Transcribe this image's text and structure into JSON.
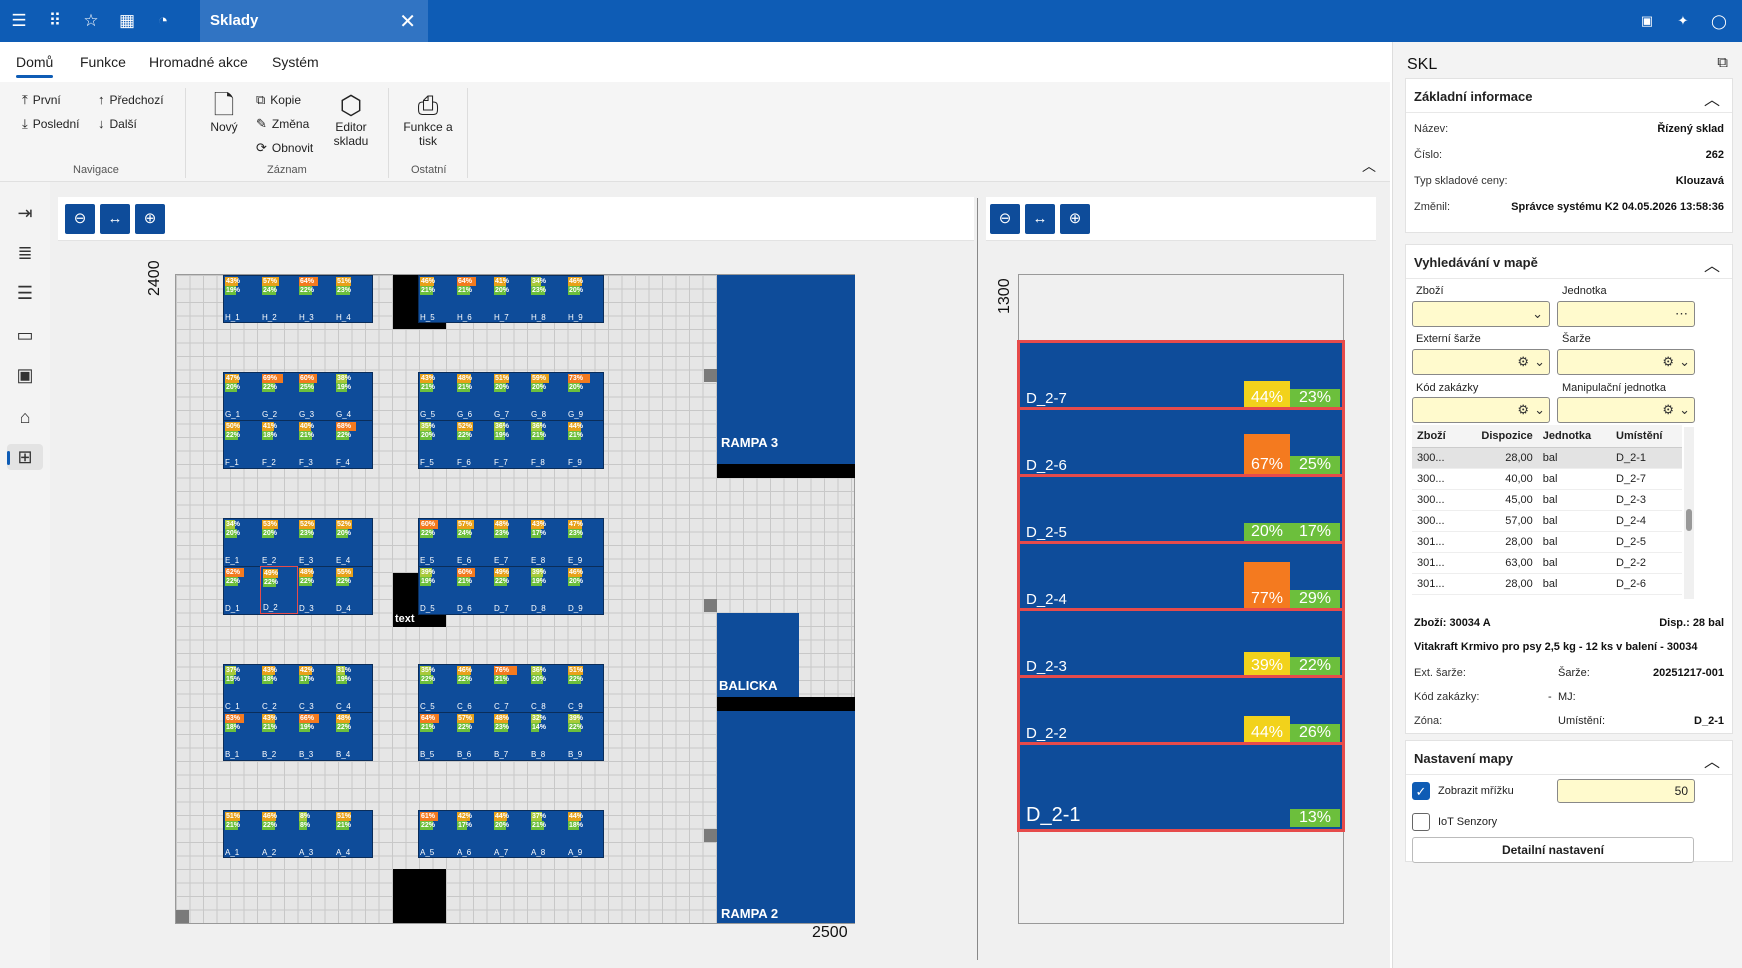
{
  "tab": {
    "label": "Sklady"
  },
  "menu": [
    "Domů",
    "Funkce",
    "Hromadné akce",
    "Systém"
  ],
  "ribbon": {
    "nav": {
      "first": "První",
      "prev": "Předchozí",
      "last": "Poslední",
      "next": "Další",
      "group": "Navigace"
    },
    "record": {
      "new": "Nový",
      "copy": "Kopie",
      "change": "Změna",
      "refresh": "Obnovit",
      "editor_l1": "Editor",
      "editor_l2": "skladu",
      "group": "Záznam"
    },
    "other": {
      "print_l1": "Funkce a",
      "print_l2": "tisk",
      "group": "Ostatní"
    }
  },
  "map1": {
    "axis_y": "2400",
    "axis_x": "2500",
    "zones": {
      "rampa3": "RAMPA 3",
      "balicka": "BALICKA",
      "rampa2": "RAMPA 2",
      "text": "text"
    },
    "rows": [
      {
        "labels": [
          "H_1",
          "H_2",
          "H_3",
          "H_4",
          "H_5",
          "H_6",
          "H_7",
          "H_8",
          "H_9"
        ],
        "t1": [
          "43%",
          "57%",
          "64%",
          "51%",
          "46%",
          "64%",
          "41%",
          "34%",
          "46%"
        ],
        "t2": [
          "19%",
          "24%",
          "22%",
          "23%",
          "21%",
          "21%",
          "20%",
          "23%",
          "20%"
        ]
      },
      {
        "labels": [
          "G_1",
          "G_2",
          "G_3",
          "G_4",
          "G_5",
          "G_6",
          "G_7",
          "G_8",
          "G_9"
        ],
        "t1": [
          "47%",
          "69%",
          "60%",
          "38%",
          "43%",
          "48%",
          "51%",
          "59%",
          "73%"
        ],
        "t2": [
          "20%",
          "22%",
          "25%",
          "19%",
          "21%",
          "21%",
          "20%",
          "20%",
          "20%"
        ]
      },
      {
        "labels": [
          "F_1",
          "F_2",
          "F_3",
          "F_4",
          "F_5",
          "F_6",
          "F_7",
          "F_8",
          "F_9"
        ],
        "t1": [
          "50%",
          "41%",
          "40%",
          "68%",
          "35%",
          "52%",
          "36%",
          "36%",
          "44%"
        ],
        "t2": [
          "22%",
          "18%",
          "21%",
          "22%",
          "20%",
          "22%",
          "19%",
          "21%",
          "21%"
        ]
      },
      {
        "labels": [
          "E_1",
          "E_2",
          "E_3",
          "E_4",
          "E_5",
          "E_6",
          "E_7",
          "E_8",
          "E_9"
        ],
        "t1": [
          "34%",
          "53%",
          "52%",
          "52%",
          "60%",
          "57%",
          "48%",
          "43%",
          "47%"
        ],
        "t2": [
          "20%",
          "20%",
          "23%",
          "20%",
          "22%",
          "24%",
          "23%",
          "17%",
          "23%"
        ]
      },
      {
        "labels": [
          "D_1",
          "D_2",
          "D_3",
          "D_4",
          "D_5",
          "D_6",
          "D_7",
          "D_8",
          "D_9"
        ],
        "t1": [
          "62%",
          "49%",
          "48%",
          "55%",
          "39%",
          "60%",
          "49%",
          "39%",
          "46%"
        ],
        "t2": [
          "22%",
          "22%",
          "22%",
          "22%",
          "19%",
          "21%",
          "22%",
          "19%",
          "20%"
        ]
      },
      {
        "labels": [
          "C_1",
          "C_2",
          "C_3",
          "C_4",
          "C_5",
          "C_6",
          "C_7",
          "C_8",
          "C_9"
        ],
        "t1": [
          "37%",
          "43%",
          "42%",
          "31%",
          "35%",
          "46%",
          "76%",
          "36%",
          "51%"
        ],
        "t2": [
          "15%",
          "18%",
          "17%",
          "19%",
          "22%",
          "22%",
          "21%",
          "20%",
          "22%"
        ]
      },
      {
        "labels": [
          "B_1",
          "B_2",
          "B_3",
          "B_4",
          "B_5",
          "B_6",
          "B_7",
          "B_8",
          "B_9"
        ],
        "t1": [
          "63%",
          "43%",
          "66%",
          "48%",
          "64%",
          "57%",
          "48%",
          "32%",
          "39%"
        ],
        "t2": [
          "18%",
          "21%",
          "19%",
          "22%",
          "21%",
          "22%",
          "23%",
          "14%",
          "22%"
        ]
      },
      {
        "labels": [
          "A_1",
          "A_2",
          "A_3",
          "A_4",
          "A_5",
          "A_6",
          "A_7",
          "A_8",
          "A_9"
        ],
        "t1": [
          "51%",
          "46%",
          "8%",
          "51%",
          "61%",
          "42%",
          "44%",
          "37%",
          "44%"
        ],
        "t2": [
          "21%",
          "22%",
          "8%",
          "21%",
          "22%",
          "17%",
          "20%",
          "21%",
          "18%"
        ]
      }
    ]
  },
  "map2": {
    "axis_y": "1300",
    "slots": [
      {
        "name": "D_2-7",
        "p1": "44%",
        "p2": "23%",
        "color": "#f2d21b"
      },
      {
        "name": "D_2-6",
        "p1": "67%",
        "p2": "25%",
        "color": "#f47a1f"
      },
      {
        "name": "D_2-5",
        "p1": "20%",
        "p2": "17%",
        "color": "#6cbf3c"
      },
      {
        "name": "D_2-4",
        "p1": "77%",
        "p2": "29%",
        "color": "#f47a1f"
      },
      {
        "name": "D_2-3",
        "p1": "39%",
        "p2": "22%",
        "color": "#f2d21b"
      },
      {
        "name": "D_2-2",
        "p1": "44%",
        "p2": "26%",
        "color": "#f2d21b"
      },
      {
        "name": "D_2-1",
        "p1": "",
        "p2": "13%",
        "color": ""
      }
    ]
  },
  "panel": {
    "title": "SKL",
    "info": {
      "header": "Základní informace",
      "name_k": "Název:",
      "name_v": "Řízený sklad",
      "num_k": "Číslo:",
      "num_v": "262",
      "price_k": "Typ skladové ceny:",
      "price_v": "Klouzavá",
      "changed_k": "Změnil:",
      "changed_v": "Správce systému K2 04.05.2026 13:58:36"
    },
    "search": {
      "header": "Vyhledávání v mapě",
      "goods": "Zboží",
      "unit": "Jednotka",
      "ext_batch": "Externí šarže",
      "batch": "Šarže",
      "order": "Kód zakázky",
      "handling": "Manipulační jednotka",
      "columns": [
        "Zboží",
        "Dispozice",
        "Jednotka",
        "Umístění"
      ],
      "rows": [
        [
          "300...",
          "28,00",
          "bal",
          "D_2-1"
        ],
        [
          "300...",
          "40,00",
          "bal",
          "D_2-7"
        ],
        [
          "300...",
          "45,00",
          "bal",
          "D_2-3"
        ],
        [
          "300...",
          "57,00",
          "bal",
          "D_2-4"
        ],
        [
          "301...",
          "28,00",
          "bal",
          "D_2-5"
        ],
        [
          "301...",
          "63,00",
          "bal",
          "D_2-2"
        ],
        [
          "301...",
          "28,00",
          "bal",
          "D_2-6"
        ]
      ],
      "goods_k": "Zboží:",
      "goods_v": "30034 A",
      "disp_k": "Disp.:",
      "disp_v": "28 bal",
      "product": "Vitakraft Krmivo pro psy 2,5 kg - 12 ks v balení - 30034",
      "ext_k": "Ext. šarže:",
      "batch_k": "Šarže:",
      "batch_v": "20251217-001",
      "order_k": "Kód zakázky:",
      "order_v": "-",
      "mj_k": "MJ:",
      "zone_k": "Zóna:",
      "loc_k": "Umístění:",
      "loc_v": "D_2-1"
    },
    "settings": {
      "header": "Nastavení mapy",
      "grid": "Zobrazit mřížku",
      "grid_val": "50",
      "iot": "IoT Senzory",
      "detail": "Detailní nastavení"
    }
  },
  "colors": {
    "brand": "#0e5cb5",
    "rack": "#0e4c9a",
    "slot_border": "#e64b4b"
  }
}
